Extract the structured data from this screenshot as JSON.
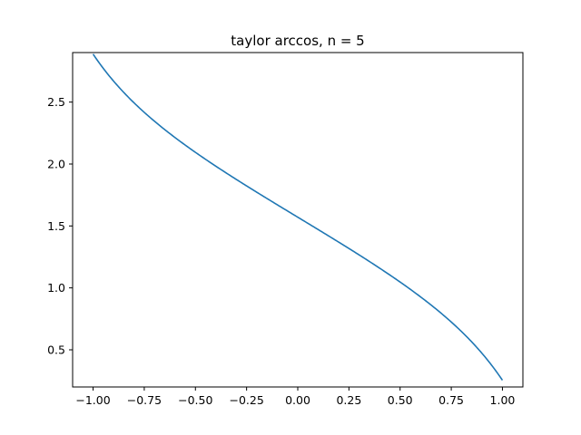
{
  "chart_data": {
    "type": "line",
    "title": "taylor arccos, n = 5",
    "xlabel": "",
    "ylabel": "",
    "xlim": [
      -1.1,
      1.1
    ],
    "ylim": [
      0.2,
      2.9
    ],
    "grid": false,
    "x_ticks": [
      -1.0,
      -0.75,
      -0.5,
      -0.25,
      0.0,
      0.25,
      0.5,
      0.75,
      1.0
    ],
    "x_tick_labels": [
      "−1.00",
      "−0.75",
      "−0.50",
      "−0.25",
      "0.00",
      "0.25",
      "0.50",
      "0.75",
      "1.00"
    ],
    "y_ticks": [
      0.5,
      1.0,
      1.5,
      2.0,
      2.5
    ],
    "y_tick_labels": [
      "0.5",
      "1.0",
      "1.5",
      "2.0",
      "2.5"
    ],
    "series": [
      {
        "color": "#1f77b4",
        "x": [
          -1.0,
          -0.9,
          -0.8,
          -0.7,
          -0.6,
          -0.5,
          -0.4,
          -0.3,
          -0.2,
          -0.1,
          0.0,
          0.1,
          0.2,
          0.3,
          0.4,
          0.5,
          0.6,
          0.7,
          0.8,
          0.9,
          1.0
        ],
        "y": [
          2.8227,
          2.6446,
          2.5093,
          2.3908,
          2.2826,
          2.1815,
          2.0852,
          1.9924,
          1.9017,
          1.8126,
          1.5708,
          1.4705,
          1.3696,
          1.2676,
          1.1642,
          1.0587,
          0.9502,
          0.8369,
          0.7164,
          0.5849,
          0.3188
        ]
      }
    ]
  }
}
